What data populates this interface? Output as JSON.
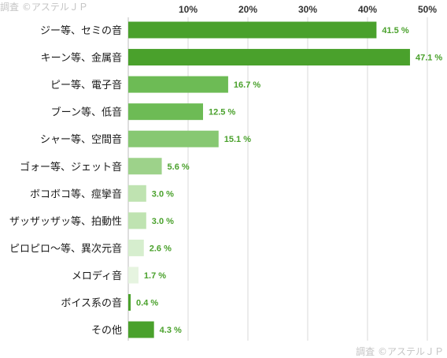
{
  "watermark": "調査 ©アステルＪＰ",
  "chart_data": {
    "type": "bar",
    "orientation": "horizontal",
    "categories": [
      "ジー等、セミの音",
      "キーン等、金属音",
      "ピー等、電子音",
      "ブーン等、低音",
      "シャー等、空間音",
      "ゴォー等、ジェット音",
      "ボコボコ等、痙攣音",
      "ザッザッザッ等、拍動性",
      "ピロピロ〜等、異次元音",
      "メロディ音",
      "ボイス系の音",
      "その他"
    ],
    "values": [
      41.5,
      47.1,
      16.7,
      12.5,
      15.1,
      5.6,
      3.0,
      3.0,
      2.6,
      1.7,
      0.4,
      4.3
    ],
    "value_labels": [
      "41.5 %",
      "47.1 %",
      "16.7 %",
      "12.5 %",
      "15.1 %",
      "5.6 %",
      "3.0 %",
      "3.0 %",
      "2.6 %",
      "1.7 %",
      "0.4 %",
      "4.3 %"
    ],
    "bar_colors": [
      "#4aa12c",
      "#4aa12c",
      "#6dbb55",
      "#6dbb55",
      "#87c872",
      "#9dd28a",
      "#bfe3b1",
      "#bfe3b1",
      "#d6eece",
      "#e6f4e0",
      "#4aa12c",
      "#4aa12c"
    ],
    "xticks": [
      "10%",
      "20%",
      "30%",
      "40%",
      "50%"
    ],
    "xtick_values": [
      10,
      20,
      30,
      40,
      50
    ],
    "xlim": [
      0,
      52
    ],
    "grid": true,
    "value_label_color": "#4aa12c"
  }
}
